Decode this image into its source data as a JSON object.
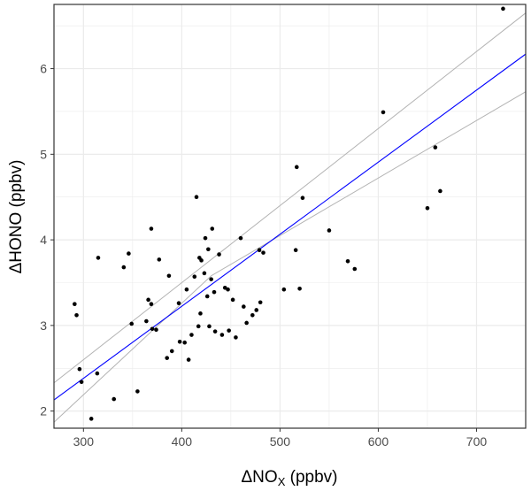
{
  "chart_data": {
    "type": "scatter",
    "xlabel": "ΔNOX (ppbv)",
    "xlabel_parts": {
      "main": "ΔNO",
      "sub": "X",
      "unit": " (ppbv)"
    },
    "ylabel": "ΔHONO (ppbv)",
    "xlim": [
      270,
      750
    ],
    "ylim": [
      1.8,
      6.75
    ],
    "x_ticks": [
      300,
      400,
      500,
      600,
      700
    ],
    "y_ticks": [
      2,
      3,
      4,
      5,
      6
    ],
    "x_tick_labels": [
      "300",
      "400",
      "500",
      "600",
      "700"
    ],
    "y_tick_labels": [
      "2",
      "3",
      "4",
      "5",
      "6"
    ],
    "grid": true,
    "colors": {
      "points": "#000000",
      "fit": "#0000ff",
      "ci": "#b3b3b3",
      "grid": "#ebebeb",
      "border": "#333333"
    },
    "fit_line": {
      "x": [
        270,
        750
      ],
      "y": [
        2.13,
        6.17
      ]
    },
    "ci_upper": {
      "x": [
        270,
        430,
        750
      ],
      "y": [
        2.33,
        3.77,
        6.65
      ]
    },
    "ci_lower": {
      "x": [
        270,
        430,
        750
      ],
      "y": [
        1.87,
        3.58,
        5.73
      ]
    },
    "points": [
      {
        "x": 291,
        "y": 3.25
      },
      {
        "x": 293,
        "y": 3.12
      },
      {
        "x": 296,
        "y": 2.49
      },
      {
        "x": 298,
        "y": 2.34
      },
      {
        "x": 308,
        "y": 1.91
      },
      {
        "x": 314,
        "y": 2.44
      },
      {
        "x": 315,
        "y": 3.79
      },
      {
        "x": 331,
        "y": 2.14
      },
      {
        "x": 341,
        "y": 3.68
      },
      {
        "x": 346,
        "y": 3.84
      },
      {
        "x": 349,
        "y": 3.02
      },
      {
        "x": 355,
        "y": 2.23
      },
      {
        "x": 364,
        "y": 3.05
      },
      {
        "x": 366,
        "y": 3.3
      },
      {
        "x": 369,
        "y": 4.13
      },
      {
        "x": 369,
        "y": 3.25
      },
      {
        "x": 370,
        "y": 2.96
      },
      {
        "x": 374,
        "y": 2.95
      },
      {
        "x": 377,
        "y": 3.77
      },
      {
        "x": 385,
        "y": 2.62
      },
      {
        "x": 387,
        "y": 3.58
      },
      {
        "x": 390,
        "y": 2.7
      },
      {
        "x": 397,
        "y": 3.26
      },
      {
        "x": 398,
        "y": 2.81
      },
      {
        "x": 403,
        "y": 2.8
      },
      {
        "x": 405,
        "y": 3.42
      },
      {
        "x": 407,
        "y": 2.6
      },
      {
        "x": 410,
        "y": 2.89
      },
      {
        "x": 413,
        "y": 3.57
      },
      {
        "x": 415,
        "y": 4.5
      },
      {
        "x": 417,
        "y": 2.99
      },
      {
        "x": 418,
        "y": 3.79
      },
      {
        "x": 419,
        "y": 3.14
      },
      {
        "x": 420,
        "y": 3.76
      },
      {
        "x": 423,
        "y": 3.61
      },
      {
        "x": 424,
        "y": 4.02
      },
      {
        "x": 426,
        "y": 3.34
      },
      {
        "x": 427,
        "y": 3.89
      },
      {
        "x": 428,
        "y": 2.99
      },
      {
        "x": 430,
        "y": 3.54
      },
      {
        "x": 431,
        "y": 4.13
      },
      {
        "x": 433,
        "y": 3.39
      },
      {
        "x": 434,
        "y": 2.93
      },
      {
        "x": 438,
        "y": 3.83
      },
      {
        "x": 441,
        "y": 2.89
      },
      {
        "x": 444,
        "y": 3.44
      },
      {
        "x": 447,
        "y": 3.42
      },
      {
        "x": 448,
        "y": 2.94
      },
      {
        "x": 452,
        "y": 3.3
      },
      {
        "x": 455,
        "y": 2.86
      },
      {
        "x": 460,
        "y": 4.02
      },
      {
        "x": 463,
        "y": 3.22
      },
      {
        "x": 466,
        "y": 3.03
      },
      {
        "x": 472,
        "y": 3.12
      },
      {
        "x": 476,
        "y": 3.18
      },
      {
        "x": 479,
        "y": 3.88
      },
      {
        "x": 480,
        "y": 3.27
      },
      {
        "x": 483,
        "y": 3.85
      },
      {
        "x": 504,
        "y": 3.42
      },
      {
        "x": 516,
        "y": 3.88
      },
      {
        "x": 517,
        "y": 4.85
      },
      {
        "x": 520,
        "y": 3.43
      },
      {
        "x": 523,
        "y": 4.49
      },
      {
        "x": 550,
        "y": 4.11
      },
      {
        "x": 569,
        "y": 3.75
      },
      {
        "x": 576,
        "y": 3.66
      },
      {
        "x": 605,
        "y": 5.49
      },
      {
        "x": 650,
        "y": 4.37
      },
      {
        "x": 658,
        "y": 5.08
      },
      {
        "x": 663,
        "y": 4.57
      },
      {
        "x": 727,
        "y": 6.7
      }
    ]
  }
}
